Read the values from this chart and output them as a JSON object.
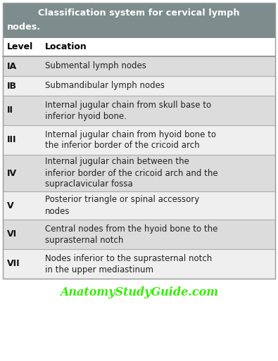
{
  "title_line1": "Classification system for cervical lymph",
  "title_line2": "nodes.",
  "header_bg": "#7d8c8c",
  "header_text_color": "#ffffff",
  "col_header_bg": "#ffffff",
  "col_header_text_color": "#000000",
  "row_bg_odd": "#dcdcdc",
  "row_bg_even": "#efefef",
  "footer_text": "AnatomyStudyGuide.com",
  "footer_color": "#33ee00",
  "columns": [
    "Level",
    "Location"
  ],
  "rows": [
    [
      "IA",
      "Submental lymph nodes"
    ],
    [
      "IB",
      "Submandibular lymph nodes"
    ],
    [
      "II",
      "Internal jugular chain from skull base to\ninferior hyoid bone."
    ],
    [
      "III",
      "Internal jugular chain from hyoid bone to\nthe inferior border of the cricoid arch"
    ],
    [
      "IV",
      "Internal jugular chain between the\ninferior border of the cricoid arch and the\nsupraclavicular fossa"
    ],
    [
      "V",
      "Posterior triangle or spinal accessory\nnodes"
    ],
    [
      "VI",
      "Central nodes from the hyoid bone to the\nsuprasternal notch"
    ],
    [
      "VII",
      "Nodes inferior to the suprasternal notch\nin the upper mediastinum"
    ]
  ],
  "fig_width": 3.95,
  "fig_height": 5.13,
  "dpi": 100
}
